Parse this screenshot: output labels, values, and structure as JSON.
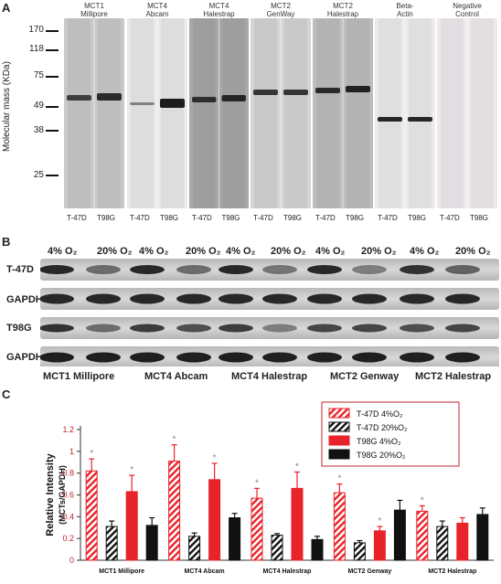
{
  "panel_a": {
    "letter": "A",
    "y_axis_label": "Molecular mass (KDa)",
    "mw_markers": [
      "170",
      "118",
      "75",
      "49",
      "38",
      "25"
    ],
    "groups": [
      {
        "title": "MCT1\nMillipore",
        "lanes": [
          "T-47D",
          "T98G"
        ]
      },
      {
        "title": "MCT4\nAbcam",
        "lanes": [
          "T-47D",
          "T98G"
        ]
      },
      {
        "title": "MCT4\nHalestrap",
        "lanes": [
          "T-47D",
          "T98G"
        ]
      },
      {
        "title": "MCT2\nGenWay",
        "lanes": [
          "T-47D",
          "T98G"
        ]
      },
      {
        "title": "MCT2\nHalestrap",
        "lanes": [
          "T-47D",
          "T98G"
        ]
      },
      {
        "title": "Beta-\nActin",
        "lanes": [
          "T-47D",
          "T98G"
        ]
      },
      {
        "title": "Negative\nControl",
        "lanes": [
          "T-47D",
          "T98G"
        ]
      }
    ]
  },
  "panel_b": {
    "letter": "B",
    "conditions": [
      "4% O₂",
      "20% O₂",
      "4% O₂",
      "20% O₂",
      "4% O₂",
      "20% O₂",
      "4% O₂",
      "20% O₂",
      "4% O₂",
      "20% O₂"
    ],
    "rows": [
      "T-47D",
      "GAPDH",
      "T98G",
      "GAPDH"
    ],
    "groups": [
      "MCT1 Millipore",
      "MCT4 Abcam",
      "MCT4 Halestrap",
      "MCT2 Genway",
      "MCT2 Halestrap"
    ]
  },
  "panel_c": {
    "letter": "C"
  },
  "colors": {
    "red": "#e8232a",
    "black": "#111111"
  },
  "chart_data": {
    "type": "bar",
    "title": "",
    "xlabel": "",
    "ylabel": "Relative Intensity\n(MCTs/GAPDH)",
    "ylim": [
      0,
      1.2
    ],
    "yticks": [
      "0",
      "0.2",
      "0.4",
      "0.6",
      "0.8",
      "1",
      "1.2"
    ],
    "categories": [
      "MCT1 Millipore",
      "MCT4 Abcam",
      "MCT4 Halestrap",
      "MCT2 Genway",
      "MCT2 Halestrap"
    ],
    "legend_position": "top-right",
    "series": [
      {
        "name": "T-47D  4%O₂",
        "pattern": "red-hatch",
        "values": [
          0.82,
          0.91,
          0.57,
          0.62,
          0.45
        ],
        "errors": [
          0.11,
          0.15,
          0.09,
          0.08,
          0.05
        ]
      },
      {
        "name": "T-47D  20%O₂",
        "pattern": "black-hatch",
        "values": [
          0.31,
          0.22,
          0.23,
          0.16,
          0.31
        ],
        "errors": [
          0.05,
          0.03,
          0.015,
          0.02,
          0.05
        ]
      },
      {
        "name": "T98G  4%O₂",
        "pattern": "red-solid",
        "values": [
          0.63,
          0.74,
          0.66,
          0.27,
          0.34
        ],
        "errors": [
          0.15,
          0.15,
          0.15,
          0.04,
          0.05
        ]
      },
      {
        "name": "T98G  20%O₂",
        "pattern": "black-solid",
        "values": [
          0.32,
          0.39,
          0.19,
          0.46,
          0.42
        ],
        "errors": [
          0.07,
          0.04,
          0.03,
          0.09,
          0.06
        ]
      }
    ],
    "significance": [
      [
        "*",
        "",
        "*",
        ""
      ],
      [
        "*",
        "",
        "*",
        ""
      ],
      [
        "*",
        "",
        "*",
        ""
      ],
      [
        "*",
        "",
        "*",
        ""
      ],
      [
        "*",
        "",
        "",
        ""
      ]
    ]
  }
}
